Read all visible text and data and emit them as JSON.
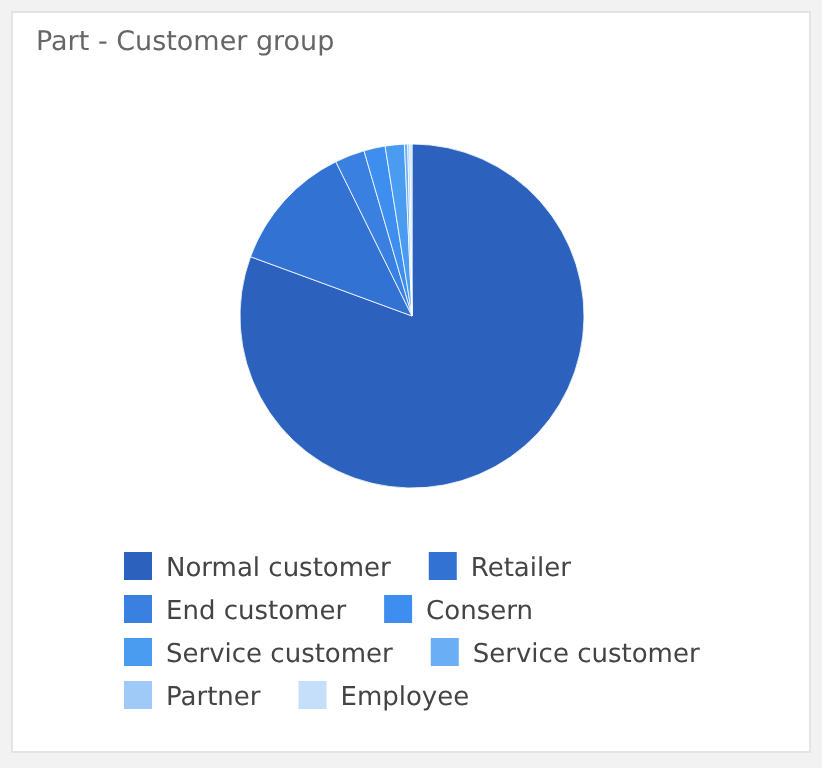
{
  "chart_data": {
    "type": "pie",
    "title": "Part - Customer group",
    "categories": [
      "Normal customer",
      "Retailer",
      "End customer",
      "Consern",
      "Service customer",
      "Service customer",
      "Partner",
      "Employee"
    ],
    "values": [
      80.6,
      12.1,
      2.8,
      2.0,
      1.8,
      0.3,
      0.2,
      0.2
    ],
    "colors": [
      "#2c61bd",
      "#3172d3",
      "#3a80e0",
      "#3d8eee",
      "#4a9cf0",
      "#6aaef5",
      "#9fc9f7",
      "#c5defa"
    ],
    "legend": "bottom"
  }
}
